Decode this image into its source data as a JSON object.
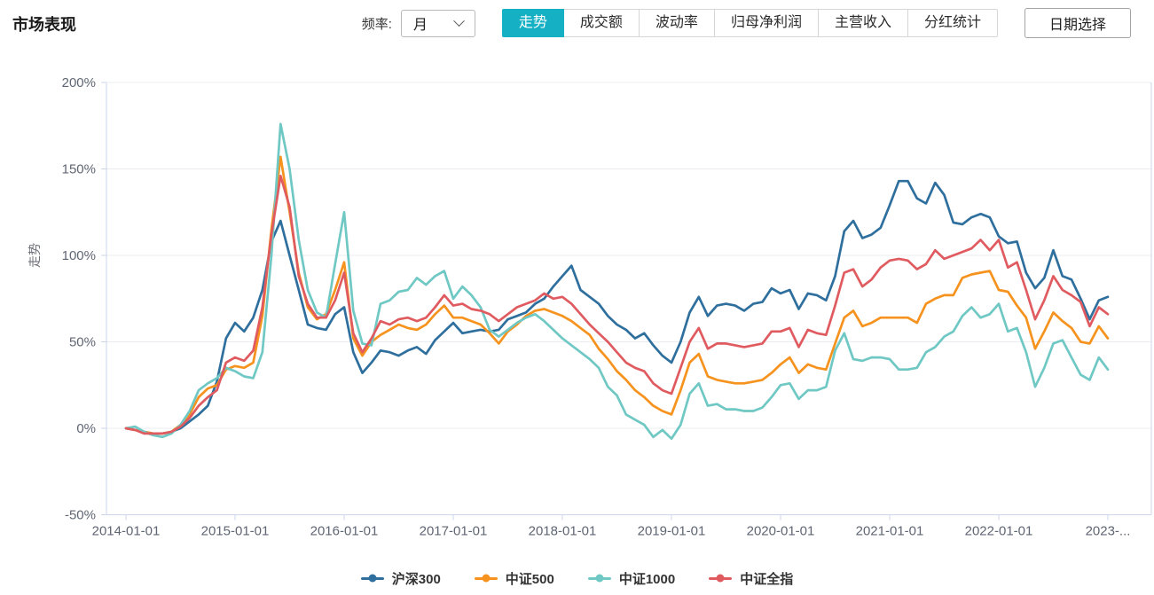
{
  "header": {
    "title": "市场表现",
    "frequency_label": "频率:",
    "frequency_value": "月",
    "tabs": [
      "走势",
      "成交额",
      "波动率",
      "归母净利润",
      "主营收入",
      "分红统计"
    ],
    "active_tab": "走势",
    "date_button_label": "日期选择",
    "accent_color": "#15b0c3"
  },
  "chart_data": {
    "type": "line",
    "title": "",
    "xlabel": "",
    "ylabel": "走势",
    "legend_position": "bottom",
    "grid": true,
    "ylim": [
      -50,
      200
    ],
    "y_tick_labels": [
      "-50%",
      "0%",
      "50%",
      "100%",
      "150%",
      "200%"
    ],
    "y_tick_values": [
      -50,
      0,
      50,
      100,
      150,
      200
    ],
    "x_tick_labels": [
      "2014-01-01",
      "2015-01-01",
      "2016-01-01",
      "2017-01-01",
      "2018-01-01",
      "2019-01-01",
      "2020-01-01",
      "2021-01-01",
      "2022-01-01",
      "2023-..."
    ],
    "x_tick_months": [
      0,
      12,
      24,
      36,
      48,
      60,
      72,
      84,
      96,
      108
    ],
    "x_unit": "month",
    "x_start": "2014-01",
    "x_end": "2023-01",
    "value_unit": "%",
    "series": [
      {
        "name": "沪深300",
        "color": "#2e6f9e",
        "values": [
          0,
          -1,
          -2,
          -3,
          -3,
          -2,
          0,
          4,
          8,
          13,
          27,
          52,
          61,
          56,
          64,
          80,
          108,
          120,
          100,
          80,
          60,
          58,
          57,
          66,
          70,
          44,
          32,
          38,
          45,
          44,
          42,
          45,
          47,
          43,
          51,
          56,
          61,
          55,
          56,
          57,
          56,
          57,
          63,
          65,
          67,
          72,
          75,
          82,
          88,
          94,
          80,
          76,
          72,
          65,
          60,
          57,
          52,
          55,
          48,
          42,
          38,
          50,
          67,
          76,
          65,
          71,
          72,
          71,
          68,
          72,
          73,
          81,
          78,
          80,
          69,
          78,
          77,
          74,
          88,
          114,
          120,
          110,
          112,
          116,
          129,
          143,
          143,
          133,
          130,
          142,
          135,
          119,
          118,
          122,
          124,
          122,
          111,
          107,
          108,
          90,
          81,
          87,
          103,
          88,
          86,
          75,
          63,
          74,
          76
        ]
      },
      {
        "name": "中证500",
        "color": "#f6921e",
        "values": [
          0,
          -1,
          -2,
          -3,
          -3,
          -2,
          2,
          8,
          18,
          23,
          25,
          34,
          36,
          35,
          38,
          65,
          115,
          157,
          125,
          90,
          70,
          63,
          66,
          80,
          96,
          52,
          42,
          50,
          54,
          57,
          60,
          58,
          57,
          60,
          66,
          71,
          64,
          64,
          62,
          60,
          55,
          49,
          56,
          60,
          65,
          68,
          69,
          67,
          65,
          62,
          58,
          54,
          46,
          40,
          33,
          28,
          22,
          18,
          13,
          10,
          8,
          22,
          38,
          43,
          30,
          28,
          27,
          26,
          26,
          27,
          28,
          32,
          37,
          41,
          32,
          37,
          35,
          34,
          49,
          64,
          68,
          59,
          61,
          64,
          64,
          64,
          64,
          61,
          72,
          75,
          77,
          77,
          87,
          89,
          90,
          91,
          80,
          79,
          71,
          64,
          46,
          56,
          67,
          62,
          58,
          50,
          49,
          59,
          52
        ]
      },
      {
        "name": "中证1000",
        "color": "#6fc8c4",
        "values": [
          0,
          1,
          -2,
          -4,
          -5,
          -3,
          2,
          10,
          22,
          26,
          29,
          35,
          33,
          30,
          29,
          44,
          100,
          176,
          150,
          109,
          80,
          67,
          64,
          95,
          125,
          68,
          49,
          48,
          72,
          74,
          79,
          80,
          87,
          83,
          88,
          91,
          75,
          82,
          77,
          70,
          57,
          53,
          57,
          61,
          64,
          66,
          62,
          57,
          52,
          48,
          44,
          40,
          35,
          24,
          19,
          8,
          5,
          2,
          -5,
          -1,
          -6,
          2,
          20,
          26,
          13,
          14,
          11,
          11,
          10,
          10,
          12,
          18,
          25,
          26,
          17,
          22,
          22,
          24,
          45,
          55,
          40,
          39,
          41,
          41,
          40,
          34,
          34,
          35,
          44,
          47,
          53,
          56,
          65,
          70,
          64,
          66,
          72,
          56,
          58,
          44,
          24,
          35,
          49,
          51,
          41,
          31,
          28,
          41,
          34
        ]
      },
      {
        "name": "中证全指",
        "color": "#e05b60",
        "values": [
          0,
          -1,
          -3,
          -3,
          -3,
          -2,
          1,
          6,
          13,
          18,
          22,
          38,
          41,
          39,
          45,
          70,
          112,
          146,
          128,
          88,
          72,
          64,
          64,
          74,
          90,
          55,
          44,
          52,
          62,
          60,
          63,
          64,
          62,
          64,
          70,
          77,
          71,
          72,
          69,
          68,
          66,
          62,
          66,
          70,
          72,
          74,
          78,
          75,
          76,
          72,
          66,
          60,
          55,
          50,
          44,
          38,
          35,
          33,
          26,
          22,
          20,
          35,
          50,
          58,
          46,
          49,
          49,
          48,
          47,
          48,
          49,
          56,
          56,
          58,
          47,
          57,
          55,
          54,
          71,
          90,
          92,
          82,
          86,
          93,
          97,
          98,
          97,
          92,
          95,
          103,
          98,
          100,
          102,
          104,
          109,
          103,
          109,
          93,
          96,
          80,
          63,
          74,
          88,
          80,
          77,
          73,
          59,
          70,
          66
        ]
      }
    ]
  }
}
